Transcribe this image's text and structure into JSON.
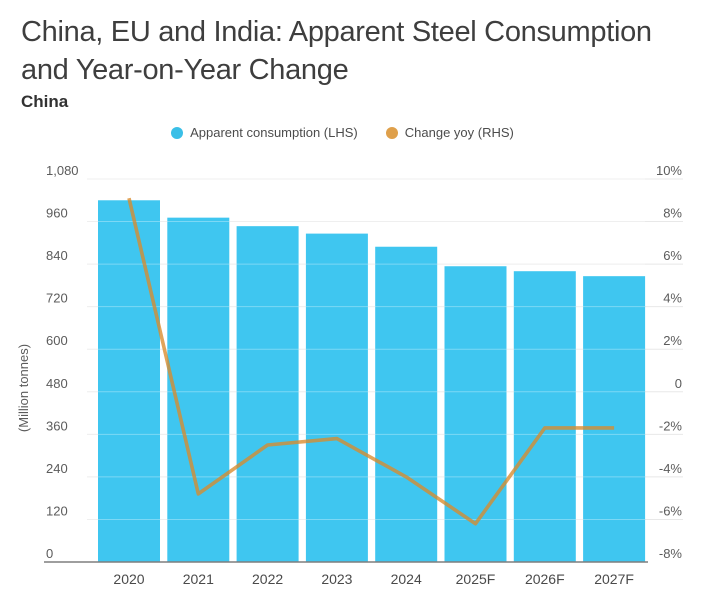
{
  "title_lines": [
    "China, EU and India: Apparent Steel Consumption",
    "and Year-on-Year Change"
  ],
  "subtitle": "China",
  "legend": [
    {
      "label": "Apparent consumption (LHS)",
      "color": "#3abfe7",
      "marker": "circle"
    },
    {
      "label": "Change yoy (RHS)",
      "color": "#dfa04b",
      "marker": "circle"
    }
  ],
  "colors": {
    "bar": "#3fc6f0",
    "line": "#d88a2c",
    "grid": "#e8e8e8",
    "axis_line": "#7e7e7e",
    "tick_text": "#5b5b5b",
    "x_tick_text": "#4a4a4a",
    "title_text": "#3e3e3e"
  },
  "chart_data": {
    "type": "bar",
    "subtype": "bar-plus-line-dual-axis",
    "categories": [
      "2020",
      "2021",
      "2022",
      "2023",
      "2024",
      "2025F",
      "2026F",
      "2027F"
    ],
    "series": [
      {
        "name": "Apparent consumption (LHS)",
        "type": "bar",
        "axis": "left",
        "values": [
          1020,
          971,
          947,
          926,
          889,
          834,
          820,
          806
        ]
      },
      {
        "name": "Change yoy (RHS)",
        "type": "line",
        "axis": "right",
        "values": [
          9.1,
          -4.8,
          -2.5,
          -2.2,
          -4.0,
          -6.2,
          -1.7,
          -1.7
        ]
      }
    ],
    "left_axis": {
      "title": "(Million tonnes)",
      "min": 0,
      "max": 1080,
      "step": 120,
      "tick_labels": [
        "0",
        "120",
        "240",
        "360",
        "480",
        "600",
        "720",
        "840",
        "960",
        "1,080"
      ]
    },
    "right_axis": {
      "unit": "%",
      "min": -8,
      "max": 10,
      "step": 2,
      "tick_labels": [
        "-8%",
        "-6%",
        "-4%",
        "-2%",
        "0",
        "2%",
        "4%",
        "6%",
        "8%",
        "10%"
      ]
    },
    "grid": true,
    "legend_position": "top"
  }
}
